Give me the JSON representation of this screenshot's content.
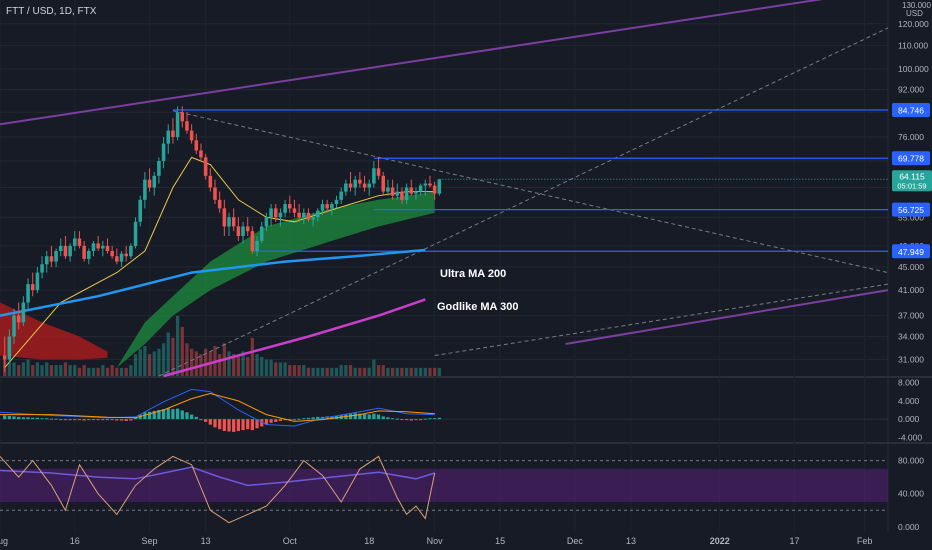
{
  "header": {
    "symbol_title": "FTT / USD, 1D, FTX"
  },
  "colors": {
    "background": "#171b26",
    "panel_divider": "#2a2e39",
    "up": "#26a69a",
    "down": "#ef5350",
    "level_line": "#2962ff",
    "price_tag": "#2962ff",
    "current_tag": "#26a69a",
    "channel": "#7b3fa0",
    "trend_dashed": "#787b86",
    "ma_yellow": "#e6c84a",
    "ma_ultra": "#2196f3",
    "ma_godlike": "#c93fc9",
    "cloud_green": "#1e8e3e",
    "cloud_red": "#b71c1c",
    "macd_line": "#2962ff",
    "signal_line": "#ff9800",
    "rsi_band": "#4a1f66",
    "rsi_line": "#6c5bd9",
    "stoch_line": "#d9a07a"
  },
  "annotations": {
    "ultra_ma": "Ultra MA 200",
    "godlike_ma": "Godlike MA 300"
  },
  "price_axis": {
    "unit": "USD",
    "top_tick": "130.000",
    "ticks": [
      "120.000",
      "110.000",
      "100.000",
      "92.000",
      "84.000",
      "76.000",
      "69.000",
      "62.000",
      "55.000",
      "49.000",
      "45.000",
      "41.000",
      "37.000",
      "34.000",
      "31.000"
    ]
  },
  "price_tags": [
    {
      "text": "84.746",
      "price": 84.746
    },
    {
      "text": "69.778",
      "price": 69.778
    },
    {
      "text": "56.725",
      "price": 56.725
    },
    {
      "text": "47.949",
      "price": 47.949
    }
  ],
  "current_price": {
    "price": "64.115",
    "countdown": "05:01:59"
  },
  "macd_axis": {
    "ticks": [
      "8.000",
      "4.000",
      "0.000",
      "-4.000"
    ]
  },
  "rsi_axis": {
    "ticks": [
      "80.000",
      "40.000",
      "0.000"
    ]
  },
  "time_axis": {
    "labels": [
      {
        "text": "Aug",
        "day": -1
      },
      {
        "text": "16",
        "day": 15
      },
      {
        "text": "Sep",
        "day": 31
      },
      {
        "text": "13",
        "day": 43
      },
      {
        "text": "Oct",
        "day": 61
      },
      {
        "text": "18",
        "day": 78
      },
      {
        "text": "Nov",
        "day": 92
      },
      {
        "text": "15",
        "day": 106
      },
      {
        "text": "Dec",
        "day": 122
      },
      {
        "text": "13",
        "day": 134
      },
      {
        "text": "2022",
        "day": 153
      },
      {
        "text": "17",
        "day": 169
      },
      {
        "text": "Feb",
        "day": 184
      }
    ]
  },
  "chart_data": {
    "type": "candlestick",
    "title": "FTT / USD, 1D, FTX",
    "ylim": [
      29,
      131
    ],
    "y_scale": "log",
    "xlim_days": [
      -1,
      189
    ],
    "grid": true,
    "candles": [
      [
        31.5,
        34,
        29.5,
        31
      ],
      [
        31,
        35,
        30.5,
        34
      ],
      [
        34,
        38,
        33,
        37
      ],
      [
        37,
        39,
        35,
        36
      ],
      [
        36,
        40,
        35.5,
        39
      ],
      [
        39,
        43,
        38,
        42
      ],
      [
        42,
        44,
        40,
        41
      ],
      [
        41,
        45,
        40.5,
        44
      ],
      [
        44,
        47,
        43,
        45.5
      ],
      [
        45.5,
        48,
        44,
        47
      ],
      [
        47,
        49,
        45,
        46
      ],
      [
        46,
        48.5,
        45,
        48
      ],
      [
        48,
        50.5,
        47,
        49
      ],
      [
        49,
        51,
        46.5,
        47
      ],
      [
        47,
        49.5,
        46,
        49
      ],
      [
        49,
        52,
        48,
        50.5
      ],
      [
        50.5,
        52,
        48.5,
        49
      ],
      [
        49,
        50,
        46,
        46.5
      ],
      [
        46.5,
        48.5,
        45.5,
        48
      ],
      [
        48,
        50,
        47,
        49.5
      ],
      [
        49.5,
        51,
        48,
        48.5
      ],
      [
        48.5,
        50,
        47,
        49
      ],
      [
        49,
        50.5,
        47.5,
        48
      ],
      [
        48,
        49,
        46.5,
        47
      ],
      [
        47,
        48.5,
        45.5,
        46
      ],
      [
        46,
        48,
        45,
        47.5
      ],
      [
        47.5,
        49,
        46,
        47
      ],
      [
        47,
        49.5,
        46.5,
        49
      ],
      [
        49,
        55,
        48.5,
        54
      ],
      [
        54,
        60,
        53,
        59
      ],
      [
        59,
        66,
        57,
        64
      ],
      [
        64,
        67,
        61,
        62
      ],
      [
        62,
        66,
        60,
        65
      ],
      [
        65,
        70,
        63,
        69
      ],
      [
        69,
        76,
        67,
        74
      ],
      [
        74,
        80,
        71,
        78
      ],
      [
        78,
        82,
        74,
        76
      ],
      [
        76,
        86,
        75,
        84
      ],
      [
        84,
        86,
        79,
        81
      ],
      [
        81,
        84,
        77,
        78
      ],
      [
        78,
        80,
        74,
        75
      ],
      [
        75,
        77,
        71,
        72
      ],
      [
        72,
        74,
        69,
        70
      ],
      [
        70,
        71,
        64,
        65
      ],
      [
        65,
        67,
        61,
        62
      ],
      [
        62,
        64,
        58,
        59
      ],
      [
        59,
        61,
        56,
        57
      ],
      [
        57,
        59,
        51,
        53
      ],
      [
        53,
        56,
        51,
        55
      ],
      [
        55,
        57,
        52,
        53
      ],
      [
        53,
        55,
        50,
        51
      ],
      [
        51,
        54,
        49.5,
        53
      ],
      [
        53,
        55,
        51,
        52
      ],
      [
        52,
        53,
        47.5,
        48
      ],
      [
        48,
        51,
        47,
        50
      ],
      [
        50,
        54,
        49.5,
        53
      ],
      [
        53,
        56,
        52,
        55
      ],
      [
        55,
        58,
        53,
        57
      ],
      [
        57,
        58,
        54,
        55
      ],
      [
        55,
        57,
        53,
        56
      ],
      [
        56,
        59,
        55,
        58
      ],
      [
        58,
        60,
        56,
        57
      ],
      [
        57,
        59,
        55,
        56
      ],
      [
        56,
        58,
        54,
        55
      ],
      [
        55,
        57,
        53.5,
        56
      ],
      [
        56,
        57,
        54,
        54.5
      ],
      [
        54.5,
        56,
        53,
        55
      ],
      [
        55,
        57,
        54,
        56.5
      ],
      [
        56.5,
        59,
        55.5,
        58
      ],
      [
        58,
        59,
        56,
        57
      ],
      [
        57,
        58.5,
        55.5,
        58
      ],
      [
        58,
        60,
        57,
        59
      ],
      [
        59,
        62,
        58,
        61
      ],
      [
        61,
        64,
        60,
        63
      ],
      [
        63,
        66,
        61,
        62
      ],
      [
        62,
        65,
        60,
        64
      ],
      [
        64,
        66,
        62,
        63
      ],
      [
        63,
        65,
        61,
        62
      ],
      [
        62,
        64,
        60,
        63
      ],
      [
        63,
        69,
        62,
        67
      ],
      [
        67,
        70,
        64,
        65
      ],
      [
        65,
        66,
        60,
        61
      ],
      [
        61,
        64,
        60,
        62
      ],
      [
        62,
        64,
        59,
        60
      ],
      [
        60,
        63,
        59,
        61
      ],
      [
        61,
        62,
        58,
        59
      ],
      [
        59,
        63,
        58,
        62
      ],
      [
        62,
        64,
        60,
        60.5
      ],
      [
        60.5,
        62,
        59,
        61
      ],
      [
        61,
        63,
        60,
        62.5
      ],
      [
        62.5,
        64,
        60,
        63
      ],
      [
        63,
        65,
        62,
        62.5
      ],
      [
        62.5,
        63.5,
        59,
        60.5
      ],
      [
        60.5,
        64,
        60,
        64.1
      ]
    ],
    "volumes": [
      6,
      5,
      5,
      4,
      5,
      6,
      4,
      5,
      4,
      5,
      4,
      4,
      4,
      5,
      4,
      4,
      3,
      4,
      3,
      3,
      3,
      4,
      3,
      4,
      3,
      3,
      3,
      4,
      8,
      10,
      11,
      8,
      9,
      10,
      12,
      16,
      14,
      22,
      18,
      12,
      10,
      9,
      8,
      10,
      9,
      11,
      8,
      12,
      9,
      8,
      7,
      9,
      7,
      14,
      8,
      7,
      6,
      6,
      5,
      5,
      5,
      4,
      4,
      4,
      4,
      3,
      3,
      3,
      3,
      3,
      3,
      3,
      4,
      4,
      4,
      3,
      3,
      3,
      3,
      6,
      4,
      4,
      3,
      3,
      3,
      3,
      3,
      3,
      3,
      3,
      3,
      3,
      3,
      3
    ],
    "ma_fast": [
      [
        0,
        30
      ],
      [
        12,
        39
      ],
      [
        24,
        44
      ],
      [
        30,
        48
      ],
      [
        36,
        62
      ],
      [
        40,
        70
      ],
      [
        44,
        68
      ],
      [
        50,
        59
      ],
      [
        56,
        55
      ],
      [
        62,
        54
      ],
      [
        68,
        56
      ],
      [
        74,
        58
      ],
      [
        80,
        60
      ],
      [
        86,
        61
      ],
      [
        92,
        61
      ]
    ],
    "ultra_ma_200": [
      [
        -1,
        37
      ],
      [
        20,
        40
      ],
      [
        40,
        44
      ],
      [
        60,
        46
      ],
      [
        75,
        47
      ],
      [
        90,
        48.2
      ]
    ],
    "godlike_ma_300": [
      [
        34,
        29
      ],
      [
        50,
        31.5
      ],
      [
        65,
        34
      ],
      [
        80,
        37
      ],
      [
        90,
        39.5
      ]
    ],
    "cloud_upper": [
      [
        24,
        30
      ],
      [
        30,
        36
      ],
      [
        36,
        40
      ],
      [
        44,
        46
      ],
      [
        56,
        53
      ],
      [
        70,
        57
      ],
      [
        80,
        59
      ],
      [
        92,
        61
      ]
    ],
    "cloud_lower": [
      [
        24,
        30
      ],
      [
        30,
        33
      ],
      [
        36,
        37
      ],
      [
        44,
        41
      ],
      [
        56,
        46
      ],
      [
        70,
        50
      ],
      [
        80,
        53
      ],
      [
        92,
        56
      ]
    ],
    "red_cloud_upper": [
      [
        -1,
        39
      ],
      [
        8,
        36
      ],
      [
        16,
        34
      ],
      [
        22,
        32
      ]
    ],
    "red_cloud_lower": [
      [
        -1,
        31.5
      ],
      [
        8,
        31
      ],
      [
        16,
        31
      ],
      [
        22,
        31.2
      ]
    ],
    "levels": [
      {
        "price": 84.746,
        "from_day": 36
      },
      {
        "price": 69.778,
        "from_day": 79
      },
      {
        "price": 56.725,
        "from_day": 79
      },
      {
        "price": 47.949,
        "from_day": 53
      }
    ],
    "channel_lines": [
      {
        "from": [
          -1,
          80
        ],
        "to": [
          189,
          138
        ]
      },
      {
        "from": [
          120,
          33
        ],
        "to": [
          189,
          41
        ]
      }
    ],
    "dashed_trendlines": [
      {
        "from": [
          36,
          84.5
        ],
        "to": [
          189,
          44
        ]
      },
      {
        "from": [
          33,
          29
        ],
        "to": [
          189,
          118
        ]
      },
      {
        "from": [
          92,
          31.5
        ],
        "to": [
          189,
          42
        ]
      }
    ],
    "macd": {
      "ylim": [
        -5,
        9
      ],
      "histogram": [
        0.8,
        0.7,
        0.6,
        0.5,
        0.4,
        0.4,
        0.3,
        0.3,
        0.2,
        0.2,
        0.1,
        0.1,
        0,
        -0.1,
        -0.1,
        -0.2,
        -0.2,
        -0.3,
        -0.2,
        -0.2,
        -0.1,
        -0.1,
        -0.2,
        -0.2,
        -0.3,
        -0.3,
        -0.4,
        -0.3,
        0.5,
        1,
        1.5,
        1.6,
        1.8,
        2,
        2.2,
        2.4,
        2.2,
        2.3,
        1.9,
        1.5,
        1,
        0.5,
        0,
        -0.6,
        -1.2,
        -1.8,
        -2.2,
        -2.6,
        -2.7,
        -2.8,
        -2.6,
        -2.4,
        -2.2,
        -2.4,
        -2,
        -1.6,
        -1.2,
        -0.8,
        -0.6,
        -0.4,
        -0.2,
        -0.1,
        0,
        0.1,
        0.2,
        0.3,
        0.4,
        0.5,
        0.5,
        0.6,
        0.6,
        0.7,
        0.9,
        1.1,
        1.2,
        1.3,
        1.2,
        1.1,
        1,
        1.2,
        1,
        0.6,
        0.4,
        0.2,
        0.1,
        -0.1,
        -0.2,
        -0.3,
        -0.2,
        -0.1,
        0.1,
        0.2,
        0.2,
        0.3
      ],
      "macd_line": [
        [
          -1,
          1.5
        ],
        [
          10,
          0.8
        ],
        [
          22,
          0.3
        ],
        [
          28,
          0.5
        ],
        [
          34,
          3.8
        ],
        [
          40,
          6.5
        ],
        [
          44,
          6
        ],
        [
          50,
          2
        ],
        [
          56,
          -1.2
        ],
        [
          62,
          -1.5
        ],
        [
          68,
          0.2
        ],
        [
          76,
          1.6
        ],
        [
          80,
          2.4
        ],
        [
          86,
          1.2
        ],
        [
          92,
          1
        ]
      ],
      "signal_line": [
        [
          -1,
          1
        ],
        [
          10,
          1
        ],
        [
          22,
          0.4
        ],
        [
          28,
          0.3
        ],
        [
          34,
          2
        ],
        [
          40,
          4.5
        ],
        [
          44,
          5.6
        ],
        [
          50,
          4
        ],
        [
          56,
          1
        ],
        [
          62,
          -0.5
        ],
        [
          68,
          -0.1
        ],
        [
          76,
          1
        ],
        [
          80,
          1.8
        ],
        [
          86,
          1.6
        ],
        [
          92,
          1.2
        ]
      ]
    },
    "rsi": {
      "ylim": [
        -5,
        100
      ],
      "band": [
        30,
        70
      ],
      "dashed": [
        80,
        20
      ],
      "rsi_line": [
        [
          -1,
          68
        ],
        [
          10,
          65
        ],
        [
          20,
          60
        ],
        [
          28,
          58
        ],
        [
          34,
          65
        ],
        [
          40,
          72
        ],
        [
          46,
          60
        ],
        [
          52,
          50
        ],
        [
          60,
          54
        ],
        [
          70,
          60
        ],
        [
          80,
          66
        ],
        [
          84,
          62
        ],
        [
          88,
          58
        ],
        [
          92,
          65
        ]
      ],
      "stoch_line": [
        [
          -1,
          85
        ],
        [
          3,
          60
        ],
        [
          6,
          80
        ],
        [
          10,
          50
        ],
        [
          13,
          20
        ],
        [
          16,
          75
        ],
        [
          20,
          40
        ],
        [
          24,
          15
        ],
        [
          28,
          50
        ],
        [
          32,
          70
        ],
        [
          36,
          85
        ],
        [
          40,
          75
        ],
        [
          44,
          20
        ],
        [
          48,
          5
        ],
        [
          52,
          15
        ],
        [
          56,
          25
        ],
        [
          60,
          50
        ],
        [
          64,
          80
        ],
        [
          68,
          62
        ],
        [
          72,
          30
        ],
        [
          76,
          70
        ],
        [
          80,
          85
        ],
        [
          84,
          35
        ],
        [
          86,
          15
        ],
        [
          88,
          25
        ],
        [
          90,
          10
        ],
        [
          92,
          65
        ]
      ]
    }
  }
}
